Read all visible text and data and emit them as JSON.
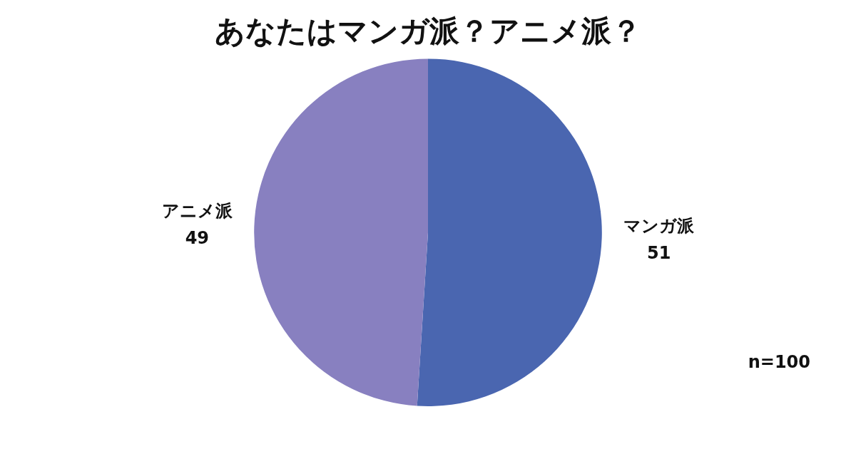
{
  "chart_data": {
    "type": "pie",
    "title": "あなたはマンガ派？アニメ派？",
    "categories": [
      "マンガ派",
      "アニメ派"
    ],
    "values": [
      51,
      49
    ],
    "colors": [
      "#4a66b0",
      "#8880c0"
    ],
    "data_labels": true,
    "legend": false,
    "annotations": [
      "n=100"
    ]
  }
}
